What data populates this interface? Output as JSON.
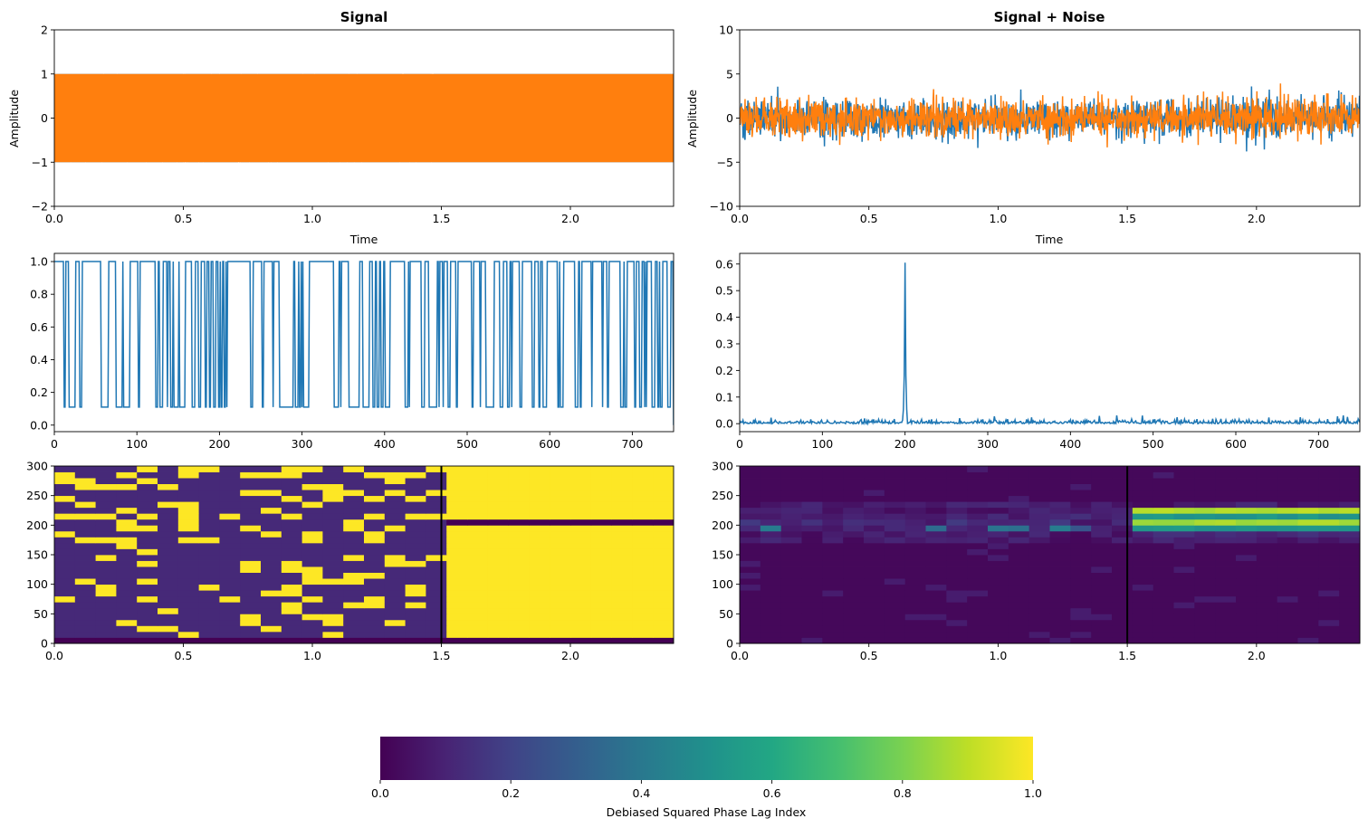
{
  "chart_data": [
    {
      "id": "signal",
      "type": "line",
      "title": "Signal",
      "xlabel": "Time",
      "ylabel": "Amplitude",
      "xlim": [
        0,
        2.4
      ],
      "ylim": [
        -2,
        2
      ],
      "xticks": [
        0.0,
        0.5,
        1.0,
        1.5,
        2.0
      ],
      "xtick_labels": [
        "0.0",
        "0.5",
        "1.0",
        "1.5",
        "2.0"
      ],
      "yticks": [
        -2,
        -1,
        0,
        1,
        2
      ],
      "ytick_labels": [
        "−2",
        "−1",
        "0",
        "1",
        "2"
      ],
      "series": [
        {
          "color": "#1f77b4",
          "kind": "binary-phase",
          "amplitude": 1,
          "noise_sd": 0,
          "coupled_from": 1.5
        },
        {
          "color": "#ff7f0e",
          "kind": "binary-phase",
          "amplitude": 1,
          "noise_sd": 0,
          "coupled_from": 1.5
        }
      ]
    },
    {
      "id": "signal_noise",
      "type": "line",
      "title": "Signal + Noise",
      "xlabel": "Time",
      "ylabel": "Amplitude",
      "xlim": [
        0,
        2.4
      ],
      "ylim": [
        -10,
        10
      ],
      "xticks": [
        0.0,
        0.5,
        1.0,
        1.5,
        2.0
      ],
      "xtick_labels": [
        "0.0",
        "0.5",
        "1.0",
        "1.5",
        "2.0"
      ],
      "yticks": [
        -10,
        -5,
        0,
        5,
        10
      ],
      "ytick_labels": [
        "−10",
        "−5",
        "0",
        "5",
        "10"
      ],
      "series": [
        {
          "color": "#1f77b4",
          "kind": "noisy",
          "noise_sd": 1.1
        },
        {
          "color": "#ff7f0e",
          "kind": "noisy",
          "noise_sd": 1.1
        }
      ]
    },
    {
      "id": "dpli_spectrum_signal",
      "type": "line",
      "title": "",
      "xlabel": "",
      "ylabel": "",
      "xlim": [
        0,
        750
      ],
      "ylim": [
        -0.04,
        1.05
      ],
      "xticks": [
        0,
        100,
        200,
        300,
        400,
        500,
        600,
        700
      ],
      "xtick_labels": [
        "0",
        "100",
        "200",
        "300",
        "400",
        "500",
        "600",
        "700"
      ],
      "yticks": [
        0.0,
        0.2,
        0.4,
        0.6,
        0.8,
        1.0
      ],
      "ytick_labels": [
        "0.0",
        "0.2",
        "0.4",
        "0.6",
        "0.8",
        "1.0"
      ],
      "series": [
        {
          "color": "#1f77b4",
          "kind": "binary-spectrum",
          "low": 0.11,
          "high": 1.0,
          "p_high": 0.62,
          "end_value": 0.0
        }
      ]
    },
    {
      "id": "dpli_spectrum_noise",
      "type": "line",
      "title": "",
      "xlabel": "",
      "ylabel": "",
      "xlim": [
        0,
        750
      ],
      "ylim": [
        -0.03,
        0.64
      ],
      "xticks": [
        0,
        100,
        200,
        300,
        400,
        500,
        600,
        700
      ],
      "xtick_labels": [
        "0",
        "100",
        "200",
        "300",
        "400",
        "500",
        "600",
        "700"
      ],
      "yticks": [
        0.0,
        0.1,
        0.2,
        0.3,
        0.4,
        0.5,
        0.6
      ],
      "ytick_labels": [
        "0.0",
        "0.1",
        "0.2",
        "0.3",
        "0.4",
        "0.5",
        "0.6"
      ],
      "series": [
        {
          "color": "#1f77b4",
          "kind": "peaked-spectrum",
          "peak_x": 200,
          "peak_y": 0.605,
          "baseline": 0.006
        }
      ]
    },
    {
      "id": "tf_signal",
      "type": "heatmap",
      "title": "",
      "xlim": [
        0,
        2.4
      ],
      "ylim": [
        0,
        300
      ],
      "xticks": [
        0.0,
        0.5,
        1.0,
        1.5,
        2.0
      ],
      "xtick_labels": [
        "0.0",
        "0.5",
        "1.0",
        "1.5",
        "2.0"
      ],
      "yticks": [
        0,
        50,
        100,
        150,
        200,
        250,
        300
      ],
      "ytick_labels": [
        "0",
        "50",
        "100",
        "150",
        "200",
        "250",
        "300"
      ],
      "n_time_bins": 30,
      "n_freq_bins": 30,
      "event_time": 1.5,
      "after_event_value": 1.0,
      "after_event_exceptions": [
        {
          "freq_bin": 20,
          "value": 0.0
        }
      ],
      "bottom_row_value": 0.0,
      "before_event": "binary-random",
      "colormap": "viridis"
    },
    {
      "id": "tf_noise",
      "type": "heatmap",
      "title": "",
      "xlim": [
        0,
        2.4
      ],
      "ylim": [
        0,
        300
      ],
      "xticks": [
        0.0,
        0.5,
        1.0,
        1.5,
        2.0
      ],
      "xtick_labels": [
        "0.0",
        "0.5",
        "1.0",
        "1.5",
        "2.0"
      ],
      "yticks": [
        0,
        50,
        100,
        150,
        200,
        250,
        300
      ],
      "ytick_labels": [
        "0",
        "50",
        "100",
        "150",
        "200",
        "250",
        "300"
      ],
      "n_time_bins": 30,
      "n_freq_bins": 30,
      "event_time": 1.5,
      "band_rows_after_event": [
        {
          "freq_bin": 22,
          "value": 0.92
        },
        {
          "freq_bin": 21,
          "value": 0.55
        },
        {
          "freq_bin": 20,
          "value": 0.9
        },
        {
          "freq_bin": 19,
          "value": 0.55
        },
        {
          "freq_bin": 18,
          "value": 0.15
        }
      ],
      "band_rows_before_event": [
        {
          "freq_bin": 19,
          "value": 0.5
        },
        {
          "freq_bin": 20,
          "value": 0.22
        },
        {
          "freq_bin": 21,
          "value": 0.18
        }
      ],
      "background_value": 0.02,
      "colormap": "viridis"
    }
  ],
  "colorbar": {
    "label": "Debiased Squared Phase Lag Index",
    "range": [
      0,
      1
    ],
    "ticks": [
      0.0,
      0.2,
      0.4,
      0.6,
      0.8,
      1.0
    ],
    "tick_labels": [
      "0.0",
      "0.2",
      "0.4",
      "0.6",
      "0.8",
      "1.0"
    ],
    "colormap": "viridis"
  }
}
